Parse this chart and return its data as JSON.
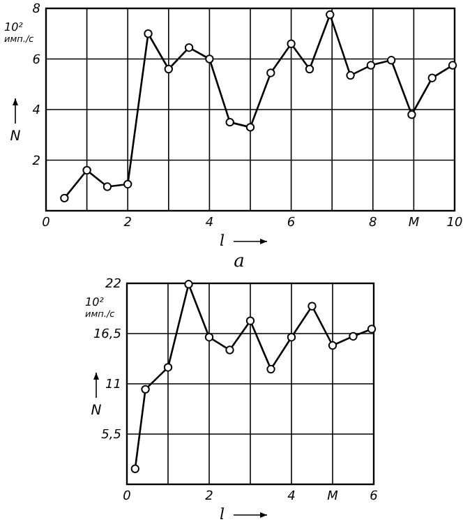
{
  "chart_data": [
    {
      "type": "line",
      "xlabel": "l",
      "ylabel": "N",
      "annotations": [
        "10² имп./с",
        "a"
      ],
      "marker": "circle",
      "grid": true,
      "series": [
        {
          "color": "#000000",
          "x": [
            0.45,
            1.0,
            1.5,
            2.0,
            2.5,
            3.0,
            3.5,
            4.0,
            4.5,
            5.0,
            5.5,
            6.0,
            6.45,
            6.95,
            7.45,
            7.95,
            8.45,
            8.95,
            9.45,
            9.95
          ],
          "values": [
            0.5,
            1.6,
            0.95,
            1.05,
            7.0,
            5.6,
            6.45,
            6.0,
            3.5,
            3.3,
            5.45,
            6.6,
            5.6,
            7.75,
            5.35,
            5.75,
            5.95,
            3.8,
            5.25,
            5.75
          ]
        }
      ],
      "xlim": [
        0,
        10
      ],
      "ylim": [
        0,
        8
      ],
      "xticks": [
        0,
        {
          "value": 1,
          "label": null
        },
        2,
        {
          "value": 3,
          "label": null
        },
        4,
        {
          "value": 5,
          "label": null
        },
        6,
        {
          "value": 7,
          "label": null
        },
        8,
        {
          "value": 9,
          "label": "M"
        },
        10
      ],
      "yticks": [
        {
          "value": 0,
          "label": null
        },
        2,
        4,
        6,
        8
      ]
    },
    {
      "type": "line",
      "xlabel": "l",
      "ylabel": "N",
      "annotations": [
        "10² имп./с"
      ],
      "marker": "circle",
      "grid": true,
      "series": [
        {
          "color": "#000000",
          "x": [
            0.2,
            0.45,
            1.0,
            1.5,
            2.0,
            2.5,
            3.0,
            3.5,
            4.0,
            4.5,
            5.0,
            5.5,
            5.95
          ],
          "values": [
            1.7,
            10.4,
            12.8,
            21.9,
            16.1,
            14.7,
            17.9,
            12.6,
            16.1,
            19.5,
            15.2,
            16.2,
            17.0
          ]
        }
      ],
      "xlim": [
        0,
        6
      ],
      "ylim": [
        0,
        22
      ],
      "xticks": [
        0,
        {
          "value": 1,
          "label": null
        },
        2,
        {
          "value": 3,
          "label": null
        },
        4,
        {
          "value": 5,
          "label": "M"
        },
        6
      ],
      "yticks": [
        {
          "value": 0,
          "label": null
        },
        {
          "value": 5.5,
          "label": "5,5"
        },
        11,
        {
          "value": 16.5,
          "label": "16,5"
        },
        22
      ]
    }
  ]
}
